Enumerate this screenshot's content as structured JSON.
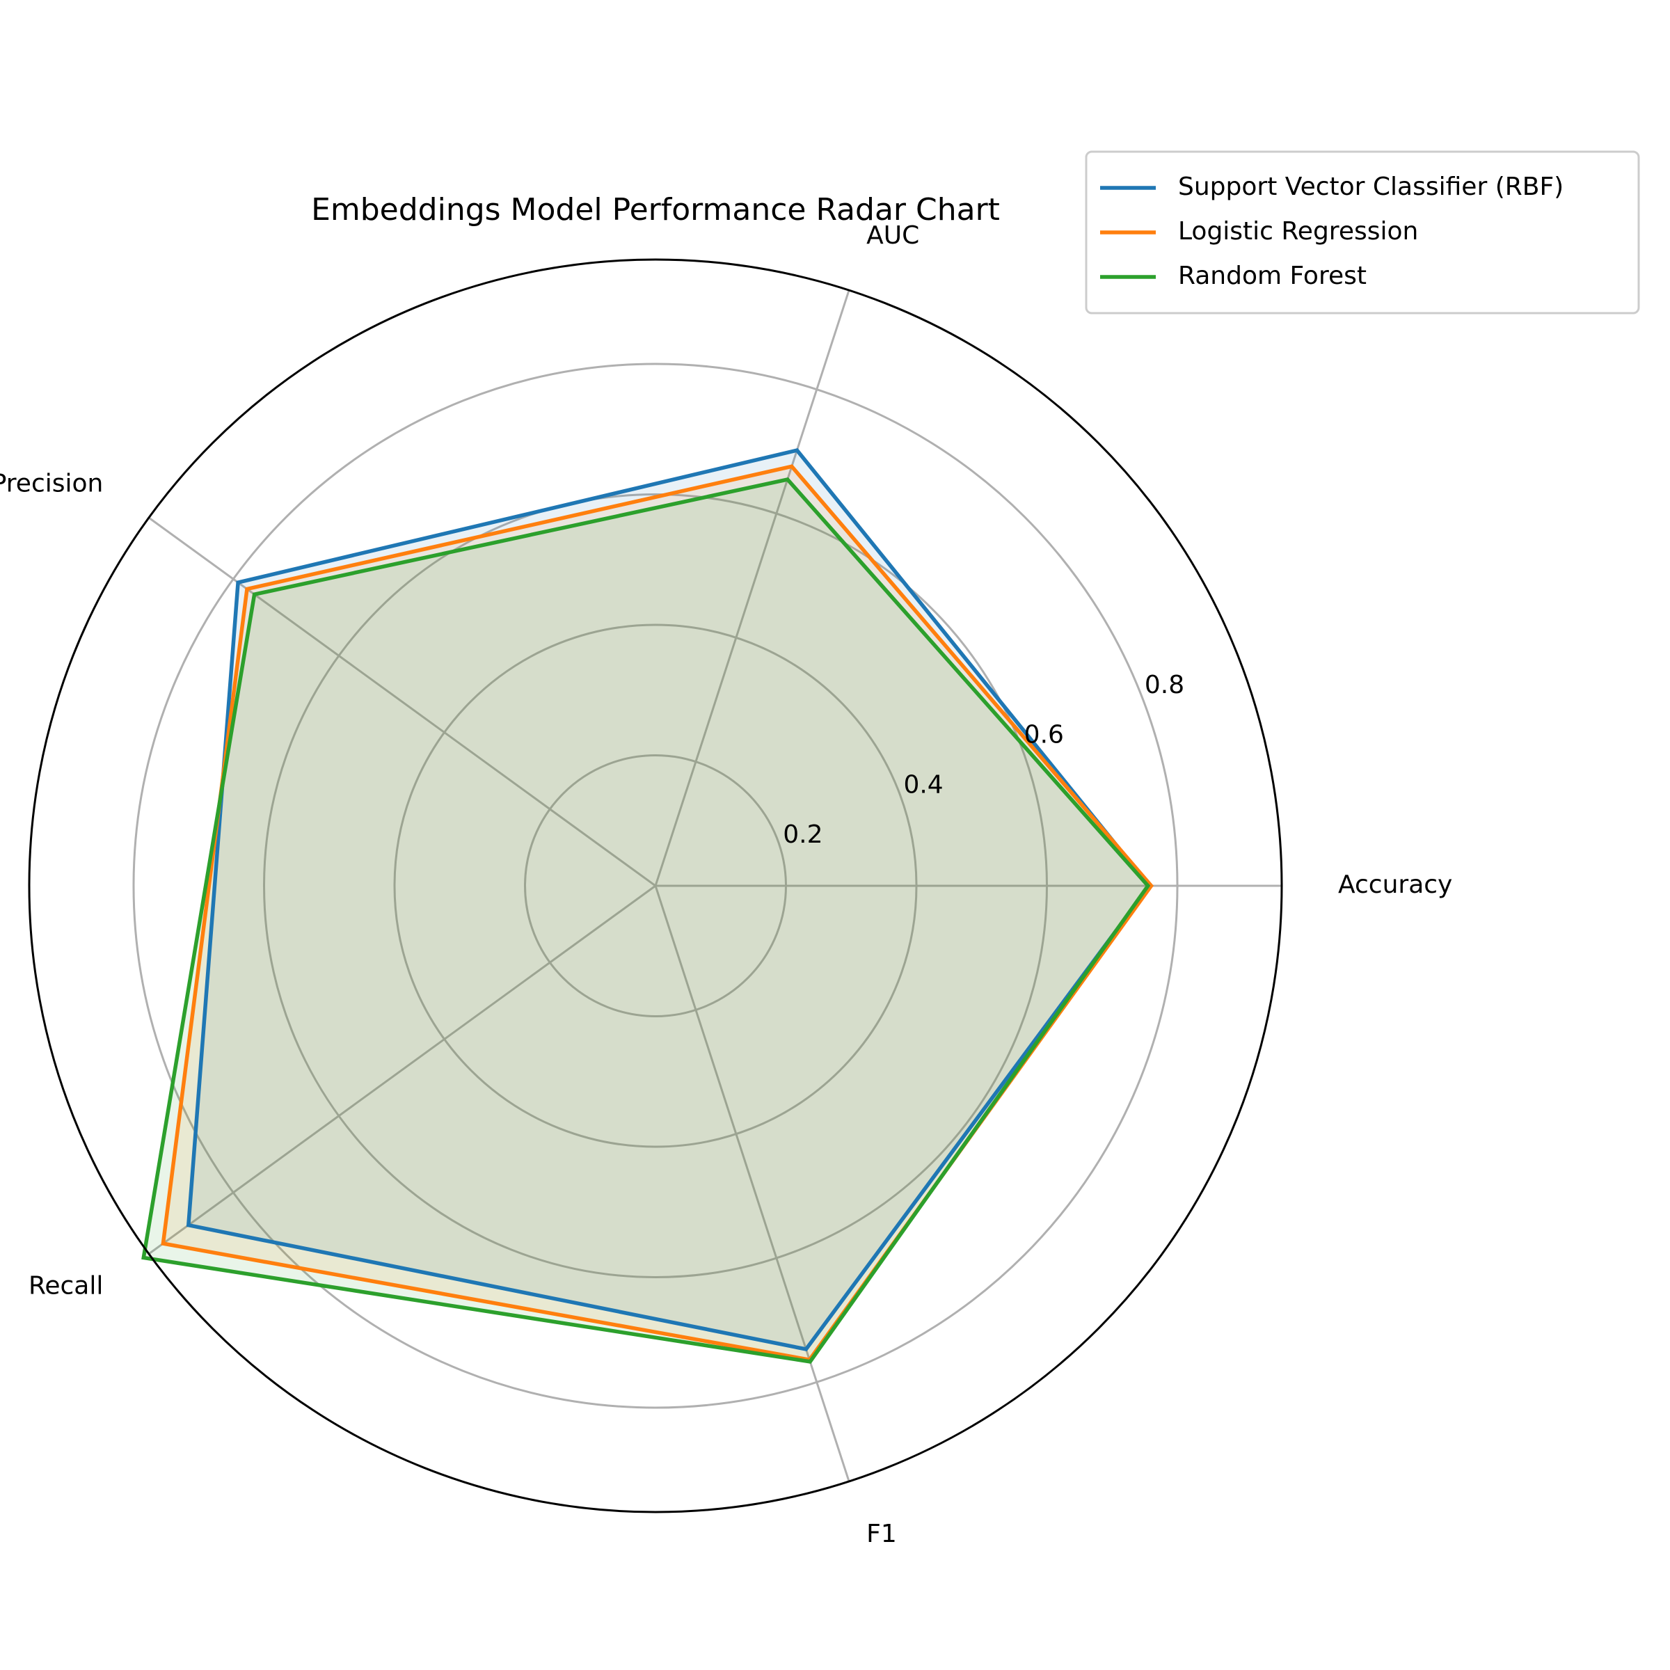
{
  "chart_data": {
    "type": "radar",
    "title": "Embeddings Model Performance Radar Chart",
    "axes": [
      "Accuracy",
      "AUC",
      "Precision",
      "Recall",
      "F1"
    ],
    "rlim": [
      0,
      0.96
    ],
    "rticks": [
      0.2,
      0.4,
      0.6,
      0.8
    ],
    "rtick_labels": [
      "0.2",
      "0.4",
      "0.6",
      "0.8"
    ],
    "grid": true,
    "legend_position": "top-right",
    "series": [
      {
        "name": "Support Vector Classifier (RBF)",
        "color": "#1f77b4",
        "values": [
          0.757,
          0.702,
          0.791,
          0.885,
          0.747
        ]
      },
      {
        "name": "Logistic Regression",
        "color": "#ff7f0e",
        "values": [
          0.76,
          0.676,
          0.774,
          0.933,
          0.764
        ]
      },
      {
        "name": "Random Forest",
        "color": "#2ca02c",
        "values": [
          0.755,
          0.655,
          0.76,
          0.97,
          0.767
        ]
      }
    ]
  }
}
